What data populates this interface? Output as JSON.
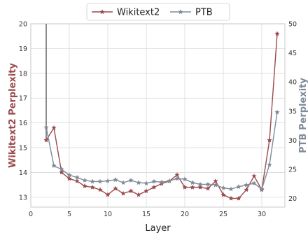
{
  "chart_data": {
    "type": "line",
    "xlabel": "Layer",
    "ylabel_left": "Wikitext2 Perplexity",
    "ylabel_right": "PTB Perplexity",
    "xlim": [
      0,
      33
    ],
    "ylim_left": [
      12.6,
      20
    ],
    "ylim_right": [
      18.5,
      50
    ],
    "xticks": [
      0,
      5,
      10,
      15,
      20,
      25,
      30
    ],
    "yticks_left": [
      13,
      14,
      15,
      16,
      17,
      18,
      19,
      20
    ],
    "yticks_right": [
      20,
      25,
      30,
      35,
      40,
      45,
      50
    ],
    "grid": true,
    "legend_position": "top-center",
    "colors": {
      "wikitext2": "#9b4a4d",
      "ptb": "#7e8b99"
    },
    "series": [
      {
        "name": "Wikitext2",
        "axis": "left",
        "color": "#9b4a4d",
        "marker": "star",
        "x": [
          2,
          3,
          4,
          5,
          6,
          7,
          8,
          9,
          10,
          11,
          12,
          13,
          14,
          15,
          16,
          17,
          18,
          19,
          20,
          21,
          22,
          23,
          24,
          25,
          26,
          27,
          28,
          29,
          30,
          31,
          32
        ],
        "y": [
          15.3,
          15.8,
          14.0,
          13.75,
          13.65,
          13.45,
          13.4,
          13.3,
          13.1,
          13.35,
          13.15,
          13.25,
          13.1,
          13.25,
          13.4,
          13.55,
          13.65,
          13.9,
          13.4,
          13.4,
          13.4,
          13.35,
          13.65,
          13.1,
          12.95,
          12.95,
          13.3,
          13.85,
          13.3,
          15.3,
          19.6
        ]
      },
      {
        "name": "PTB",
        "axis": "right",
        "color": "#7e8b99",
        "marker": "star",
        "x": [
          2,
          3,
          4,
          5,
          6,
          7,
          8,
          9,
          10,
          11,
          12,
          13,
          14,
          15,
          16,
          17,
          18,
          19,
          20,
          21,
          22,
          23,
          24,
          25,
          26,
          27,
          28,
          29,
          30,
          31,
          32
        ],
        "y": [
          32.2,
          25.6,
          25.0,
          24.0,
          23.6,
          23.1,
          22.9,
          22.9,
          23.0,
          23.2,
          22.7,
          23.1,
          22.7,
          22.6,
          22.9,
          22.8,
          23.0,
          23.4,
          23.3,
          22.7,
          22.4,
          22.4,
          22.3,
          21.8,
          21.6,
          22.0,
          22.3,
          22.6,
          21.6,
          25.8,
          34.8
        ]
      }
    ],
    "annotations": [
      {
        "type": "vertical-segment",
        "axis": "left",
        "x": 2,
        "y_from": 15.3,
        "y_to": 20,
        "color": "#707070"
      }
    ]
  }
}
